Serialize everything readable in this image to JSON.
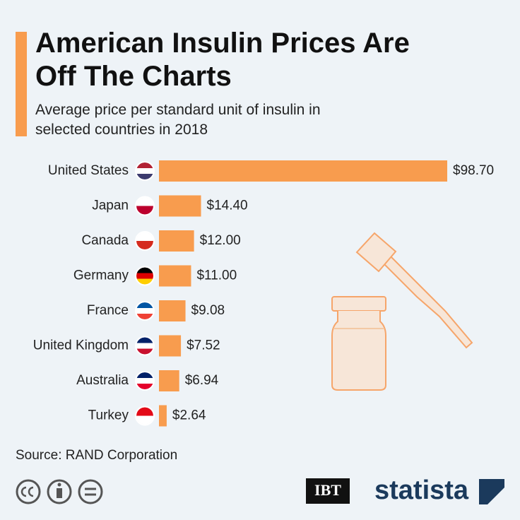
{
  "chart_data": {
    "type": "bar",
    "orientation": "horizontal",
    "title": "American Insulin Prices Are Off The Charts",
    "subtitle": "Average price per standard unit of insulin in selected countries in 2018",
    "categories": [
      "United States",
      "Japan",
      "Canada",
      "Germany",
      "France",
      "United Kingdom",
      "Australia",
      "Turkey"
    ],
    "values": [
      98.7,
      14.4,
      12.0,
      11.0,
      9.08,
      7.52,
      6.94,
      2.64
    ],
    "value_labels": [
      "$98.70",
      "$14.40",
      "$12.00",
      "$11.00",
      "$9.08",
      "$7.52",
      "$6.94",
      "$2.64"
    ],
    "color": "#f89c4e",
    "source": "Source: RAND Corporation"
  },
  "footer": {
    "logos": [
      "IBT",
      "statista"
    ]
  }
}
